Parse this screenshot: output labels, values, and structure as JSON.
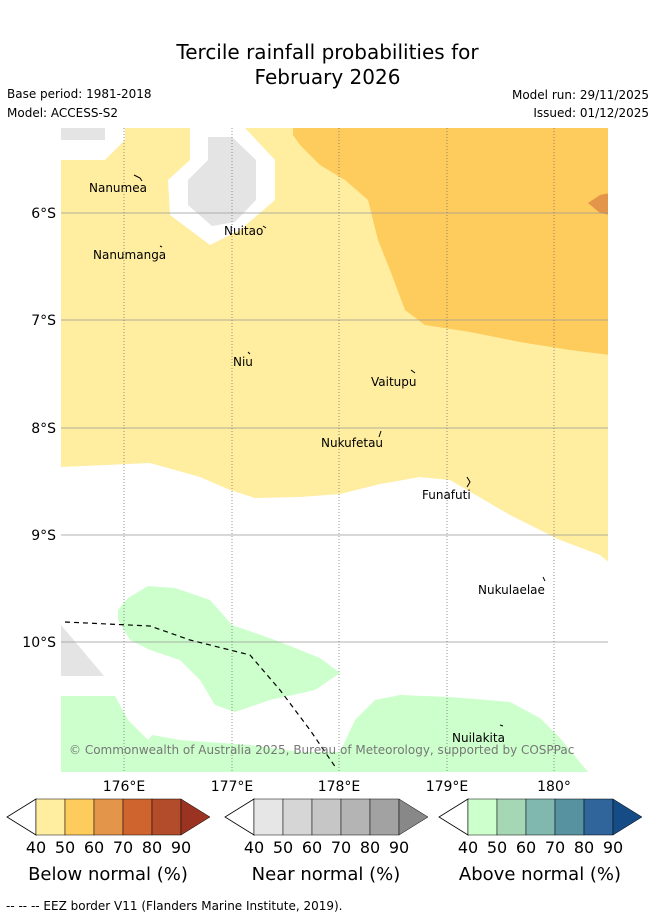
{
  "title_line1": "Tercile rainfall probabilities for",
  "title_line2": "February 2026",
  "base_period": "Base period: 1981-2018",
  "model": "Model: ACCESS-S2",
  "model_run": "Model run: 29/11/2025",
  "issued": "Issued: 01/12/2025",
  "lat_ticks": [
    "6°S",
    "7°S",
    "8°S",
    "9°S",
    "10°S"
  ],
  "lon_ticks": [
    "176°E",
    "177°E",
    "178°E",
    "179°E",
    "180°"
  ],
  "places": [
    "Nanumea",
    "Nuitao",
    "Nanumanga",
    "Niu",
    "Vaitupu",
    "Nukufetau",
    "Funafuti",
    "Nukulaelae",
    "Nuilakita"
  ],
  "copyright": "© Commonwealth of Australia 2025, Bureau of Meteorology, supported by COSPPac",
  "legends": {
    "below": {
      "title": "Below normal (%)",
      "colors": [
        "#ffeda0",
        "#fecc5c",
        "#e3954a",
        "#d0642f",
        "#b34c2a",
        "#9b3322"
      ]
    },
    "near": {
      "title": "Near normal (%)",
      "colors": [
        "#e6e6e6",
        "#d6d6d6",
        "#c6c6c6",
        "#b4b4b4",
        "#a2a2a2",
        "#888888"
      ]
    },
    "above": {
      "title": "Above normal (%)",
      "colors": [
        "#ccffcc",
        "#a5d7b5",
        "#80b8b0",
        "#5692a0",
        "#2f659b",
        "#164c85"
      ]
    },
    "labels": [
      "40",
      "50",
      "60",
      "70",
      "80",
      "90"
    ]
  },
  "footer": "--  --  -- EEZ border V11 (Flanders Marine Institute, 2019)."
}
